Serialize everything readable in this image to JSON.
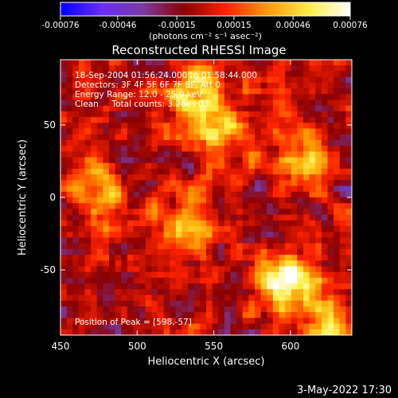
{
  "chart_data": {
    "type": "heatmap",
    "title": "Reconstructed RHESSI Image",
    "xlabel": "Heliocentric X (arcsec)",
    "ylabel": "Heliocentric Y (arcsec)",
    "xlim": [
      450,
      640
    ],
    "ylim": [
      -95,
      95
    ],
    "x_ticks": [
      450,
      500,
      550,
      600
    ],
    "y_ticks": [
      -50,
      0,
      50
    ],
    "colorbar": {
      "min": -0.00076,
      "max": 0.00076,
      "tick_values": [
        -0.00076,
        -0.00046,
        -0.00015,
        0.00015,
        0.00046,
        0.00076
      ],
      "tick_labels": [
        "-0.00076",
        "-0.00046",
        "-0.00015",
        "0.00015",
        "0.00046",
        "0.00076"
      ],
      "unit_label": "(photons cm⁻² s⁻¹ asec⁻²)",
      "colors": [
        "#0000ff",
        "#6a2cff",
        "#7a3aa0",
        "#8b0000",
        "#ff2200",
        "#ff9900",
        "#ffee44",
        "#ffffff"
      ]
    },
    "annotation_lines": [
      "18-Sep-2004 01:56:24.000 to 01:58:44.000",
      "Detectors: 3F 4F 5F 6F 7F 8F, Att 0",
      "Energy Range: 12.0 - 25.0 keV",
      "Clean     Total counts: 3.26e+03"
    ],
    "peak_label": "Position of Peak = [598,-57]",
    "peak": [
      598,
      -57
    ],
    "sources": [
      {
        "x": 540,
        "y": 68,
        "peak": 0.00072
      },
      {
        "x": 598,
        "y": -57,
        "peak": 0.00076
      },
      {
        "x": 535,
        "y": -20,
        "peak": 0.00045
      },
      {
        "x": 475,
        "y": 5,
        "peak": 0.0004
      },
      {
        "x": 610,
        "y": 25,
        "peak": 0.00042
      },
      {
        "x": 625,
        "y": -90,
        "peak": 0.00035
      },
      {
        "x": 560,
        "y": 40,
        "peak": 0.00035
      }
    ]
  },
  "footer": {
    "date": "3-May-2022 17:30"
  }
}
